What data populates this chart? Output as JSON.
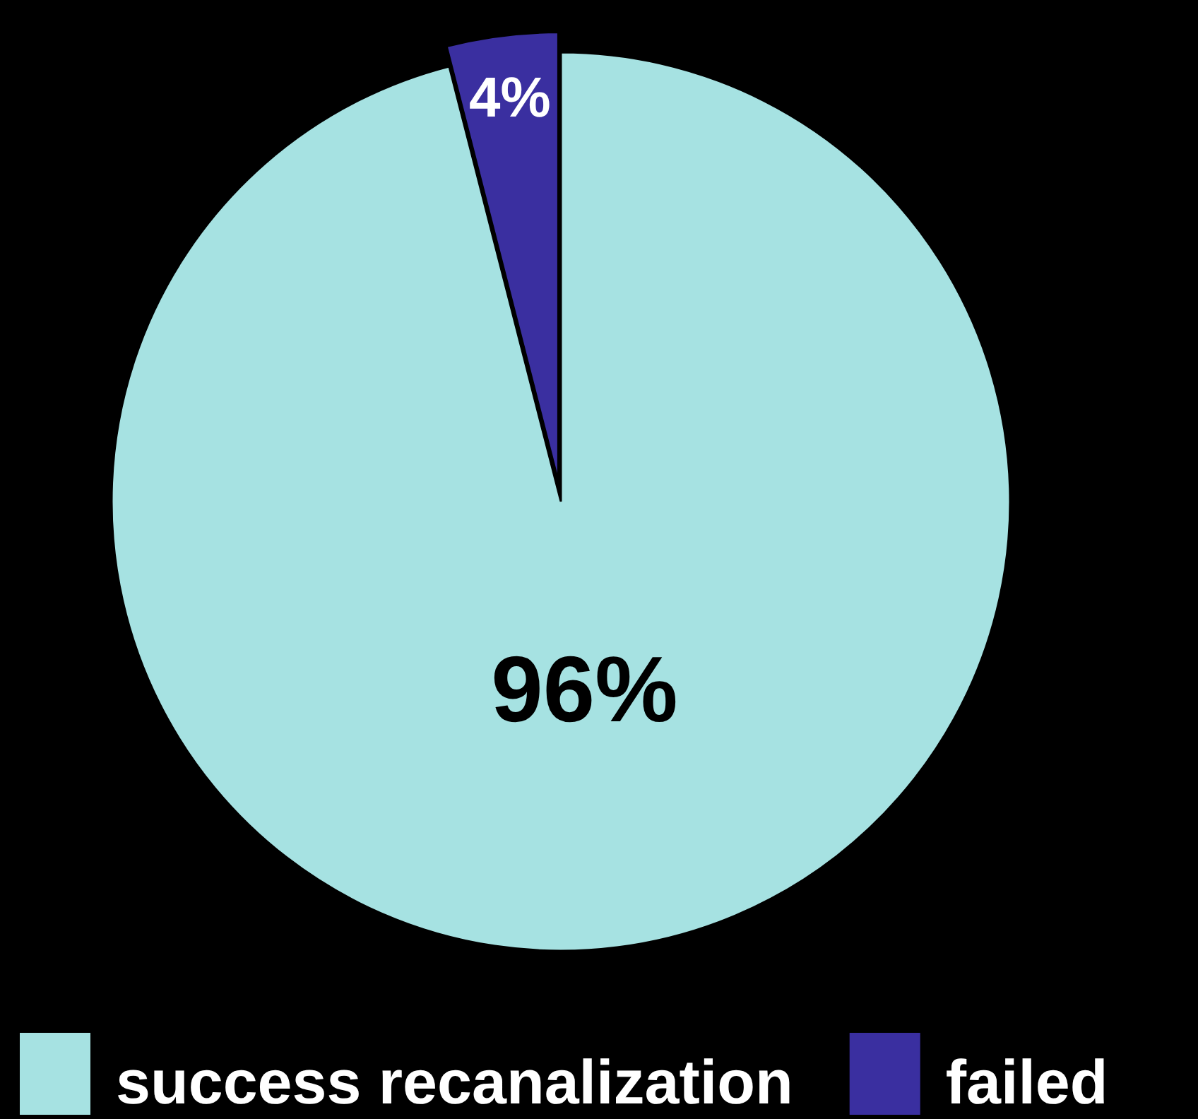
{
  "chart_data": {
    "type": "pie",
    "categories": [
      "success recanalization",
      "failed"
    ],
    "values": [
      96,
      4
    ],
    "colors": [
      "#a6e2e2",
      "#3a2fa0"
    ],
    "value_labels": [
      "96%",
      "4%"
    ],
    "legend": "bottom"
  }
}
